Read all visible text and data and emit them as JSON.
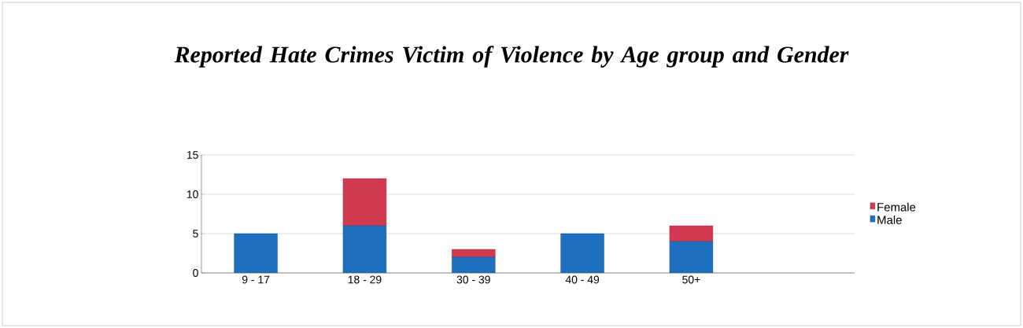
{
  "chart_data": {
    "type": "bar",
    "stacked": true,
    "title": "Reported Hate Crimes Victim of Violence by Age group and Gender",
    "categories": [
      "9 - 17",
      "18 - 29",
      "30 - 39",
      "40 - 49",
      "50+"
    ],
    "series": [
      {
        "name": "Male",
        "color": "#1f6fbf",
        "values": [
          5,
          6,
          2,
          5,
          4
        ]
      },
      {
        "name": "Female",
        "color": "#d13a50",
        "values": [
          0,
          6,
          1,
          0,
          2
        ]
      }
    ],
    "ylim": [
      0,
      15
    ],
    "yticks": [
      0,
      5,
      10,
      15
    ],
    "grid": "y",
    "legend": "right"
  }
}
